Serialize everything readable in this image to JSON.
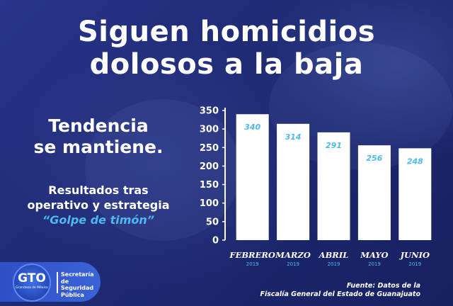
{
  "header": {
    "title_line1": "Siguen homicidios",
    "title_line2": "dolosos a la baja"
  },
  "sidebar": {
    "subtitle_line1": "Tendencia",
    "subtitle_line2": "se mantiene.",
    "note_line1": "Resultados tras",
    "note_line2": "operativo y estrategia",
    "note_highlight": "“Golpe de timón”"
  },
  "source": {
    "line1": "Fuente: Datos de la",
    "line2": "Fiscalía General del Estado de Guanajuato"
  },
  "branding": {
    "logo_text": "GTO",
    "logo_tag": "Grandeza de México",
    "org_name": "Secretaría\nde Seguridad\nPública"
  },
  "colors": {
    "background": "#1f2a6e",
    "bar": "#ffffff",
    "value_label": "#4fb8ef",
    "year_label": "#4fb8ef",
    "text": "#ffffff"
  },
  "chart_data": {
    "type": "bar",
    "categories": [
      "FEBRERO",
      "MARZO",
      "ABRIL",
      "MAYO",
      "JUNIO"
    ],
    "category_years": [
      "2019",
      "2019",
      "2019",
      "2019",
      "2019"
    ],
    "values": [
      340,
      314,
      291,
      256,
      248
    ],
    "title": "",
    "xlabel": "",
    "ylabel": "",
    "ylim": [
      0,
      350
    ],
    "yticks": [
      0,
      50,
      100,
      150,
      200,
      250,
      300,
      350
    ],
    "grid": false,
    "legend": "none",
    "data_labels": [
      "340",
      "314",
      "291",
      "256",
      "248"
    ]
  }
}
